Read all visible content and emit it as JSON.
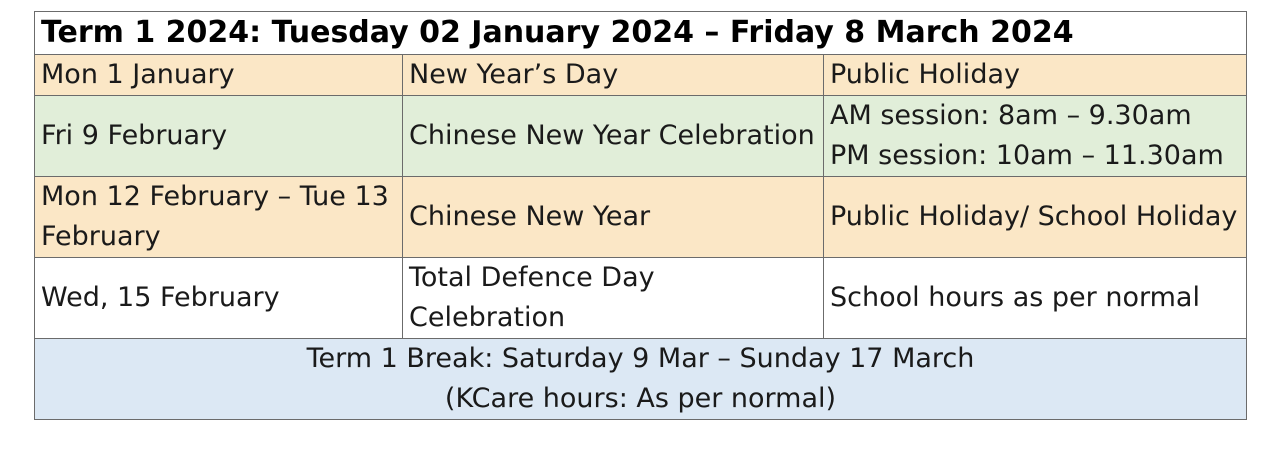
{
  "title": "Term 1 2024: Tuesday 02 January 2024 – Friday 8 March 2024",
  "rows": [
    {
      "date": "Mon 1 January",
      "event": "New Year’s Day",
      "note_lines": [
        "Public Holiday"
      ],
      "color": "#fbe7c6"
    },
    {
      "date": "Fri 9 February",
      "event": "Chinese New Year Celebration",
      "note_lines": [
        "AM session: 8am – 9.30am",
        "PM session: 10am – 11.30am"
      ],
      "color": "#e1eed9"
    },
    {
      "date": "Mon 12 February – Tue 13 February",
      "event": "Chinese New Year",
      "note_lines": [
        "Public Holiday/ School Holiday"
      ],
      "color": "#fbe7c6"
    },
    {
      "date": "Wed, 15 February",
      "event": "Total Defence Day Celebration",
      "note_lines": [
        "School hours as per normal"
      ],
      "color": "#ffffff"
    }
  ],
  "footer": {
    "line1": "Term 1 Break: Saturday 9 Mar – Sunday 17 March",
    "line2": "(KCare hours: As per normal)",
    "color": "#dce8f4"
  }
}
